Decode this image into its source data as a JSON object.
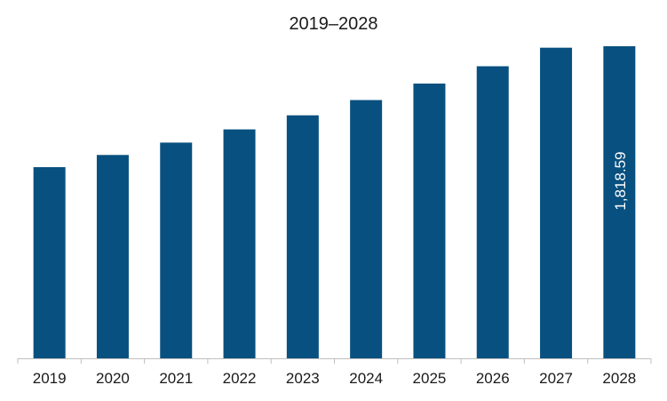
{
  "chart_data": {
    "type": "bar",
    "title": "2019–2028",
    "xlabel": "",
    "ylabel": "",
    "categories": [
      "2019",
      "2020",
      "2021",
      "2022",
      "2023",
      "2024",
      "2025",
      "2026",
      "2027",
      "2028"
    ],
    "values": [
      1114,
      1185,
      1257,
      1334,
      1416,
      1505,
      1601,
      1702,
      1810,
      1818.59
    ],
    "ylim": [
      0,
      1818.59
    ],
    "data_labels": [
      {
        "index": 9,
        "text": "1,818.59"
      }
    ],
    "grid": false,
    "legend": "none",
    "bar_color": "#08507f",
    "axis_color": "#bfbfbf"
  }
}
